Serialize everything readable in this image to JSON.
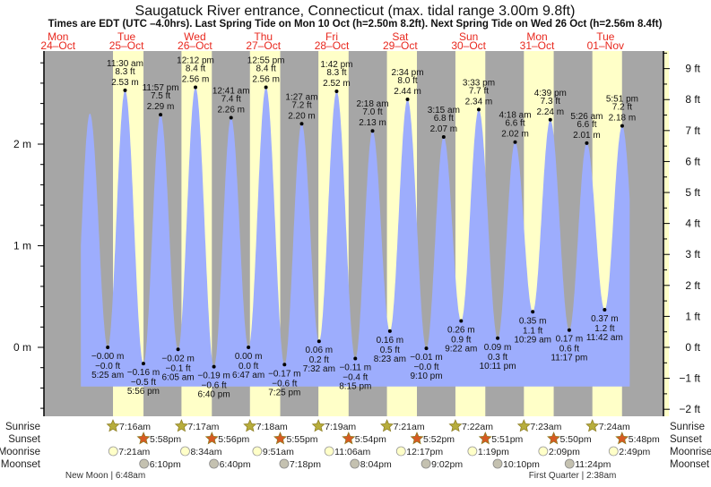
{
  "chart_data": {
    "type": "area",
    "title": "Saugatuck River entrance, Connecticut (max. tidal range 3.00m 9.8ft)",
    "subtitle": "Times are EDT (UTC –4.0hrs). Last Spring Tide on Mon 10 Oct (h=2.50m 8.2ft). Next Spring Tide on Wed 26 Oct (h=2.56m 8.4ft)",
    "ylim_m": [
      -0.68,
      2.9
    ],
    "left_ticks": [
      {
        "v": 2,
        "label": "2 m"
      },
      {
        "v": 1,
        "label": "1 m"
      },
      {
        "v": 0,
        "label": "0 m"
      }
    ],
    "right_ticks": [
      {
        "v": 9,
        "label": "9 ft"
      },
      {
        "v": 8,
        "label": "8 ft"
      },
      {
        "v": 7,
        "label": "7 ft"
      },
      {
        "v": 6,
        "label": "6 ft"
      },
      {
        "v": 5,
        "label": "5 ft"
      },
      {
        "v": 4,
        "label": "4 ft"
      },
      {
        "v": 3,
        "label": "3 ft"
      },
      {
        "v": 2,
        "label": "2 ft"
      },
      {
        "v": 1,
        "label": "1 ft"
      },
      {
        "v": 0,
        "label": "0 ft"
      },
      {
        "v": -1,
        "label": "−1 ft"
      },
      {
        "v": -2,
        "label": "−2 ft"
      }
    ],
    "days": [
      {
        "dow": "Mon",
        "date": "24–Oct"
      },
      {
        "dow": "Tue",
        "date": "25–Oct"
      },
      {
        "dow": "Wed",
        "date": "26–Oct"
      },
      {
        "dow": "Thu",
        "date": "27–Oct"
      },
      {
        "dow": "Fri",
        "date": "28–Oct"
      },
      {
        "dow": "Sat",
        "date": "29–Oct"
      },
      {
        "dow": "Sun",
        "date": "30–Oct"
      },
      {
        "dow": "Mon",
        "date": "31–Oct"
      },
      {
        "dow": "Tue",
        "date": "01–Nov"
      }
    ],
    "extremes": [
      {
        "day": 0,
        "time": "11:10 pm",
        "m": "2.30",
        "ft": "7.5",
        "type": "high",
        "labeled": false
      },
      {
        "day": 1,
        "time": "5:25 am",
        "m": "−0.00",
        "ft": "−0.0",
        "type": "low",
        "labeled": true
      },
      {
        "day": 1,
        "time": "11:30 am",
        "m": "2.53",
        "ft": "8.3",
        "type": "high",
        "labeled": true
      },
      {
        "day": 1,
        "time": "5:56 pm",
        "m": "−0.16",
        "ft": "−0.5",
        "type": "low",
        "labeled": true
      },
      {
        "day": 1,
        "time": "11:57 pm",
        "m": "2.29",
        "ft": "7.5",
        "type": "high",
        "labeled": true
      },
      {
        "day": 2,
        "time": "6:05 am",
        "m": "−0.02",
        "ft": "−0.1",
        "type": "low",
        "labeled": true
      },
      {
        "day": 2,
        "time": "12:12 pm",
        "m": "2.56",
        "ft": "8.4",
        "type": "high",
        "labeled": true
      },
      {
        "day": 2,
        "time": "6:40 pm",
        "m": "−0.19",
        "ft": "−0.6",
        "type": "low",
        "labeled": true
      },
      {
        "day": 3,
        "time": "12:41 am",
        "m": "2.26",
        "ft": "7.4",
        "type": "high",
        "labeled": true
      },
      {
        "day": 3,
        "time": "6:47 am",
        "m": "0.00",
        "ft": "0.0",
        "type": "low",
        "labeled": true
      },
      {
        "day": 3,
        "time": "12:55 pm",
        "m": "2.56",
        "ft": "8.4",
        "type": "high",
        "labeled": true
      },
      {
        "day": 3,
        "time": "7:25 pm",
        "m": "−0.17",
        "ft": "−0.6",
        "type": "low",
        "labeled": true
      },
      {
        "day": 4,
        "time": "1:27 am",
        "m": "2.20",
        "ft": "7.2",
        "type": "high",
        "labeled": true
      },
      {
        "day": 4,
        "time": "7:32 am",
        "m": "0.06",
        "ft": "0.2",
        "type": "low",
        "labeled": true
      },
      {
        "day": 4,
        "time": "1:42 pm",
        "m": "2.52",
        "ft": "8.3",
        "type": "high",
        "labeled": true
      },
      {
        "day": 4,
        "time": "8:15 pm",
        "m": "−0.11",
        "ft": "−0.4",
        "type": "low",
        "labeled": true
      },
      {
        "day": 5,
        "time": "2:18 am",
        "m": "2.13",
        "ft": "7.0",
        "type": "high",
        "labeled": true
      },
      {
        "day": 5,
        "time": "8:23 am",
        "m": "0.16",
        "ft": "0.5",
        "type": "low",
        "labeled": true
      },
      {
        "day": 5,
        "time": "2:34 pm",
        "m": "2.44",
        "ft": "8.0",
        "type": "high",
        "labeled": true
      },
      {
        "day": 5,
        "time": "9:10 pm",
        "m": "−0.01",
        "ft": "−0.0",
        "type": "low",
        "labeled": true
      },
      {
        "day": 6,
        "time": "3:15 am",
        "m": "2.07",
        "ft": "6.8",
        "type": "high",
        "labeled": true
      },
      {
        "day": 6,
        "time": "9:22 am",
        "m": "0.26",
        "ft": "0.9",
        "type": "low",
        "labeled": true
      },
      {
        "day": 6,
        "time": "3:33 pm",
        "m": "2.34",
        "ft": "7.7",
        "type": "high",
        "labeled": true
      },
      {
        "day": 6,
        "time": "10:11 pm",
        "m": "0.09",
        "ft": "0.3",
        "type": "low",
        "labeled": true
      },
      {
        "day": 7,
        "time": "4:18 am",
        "m": "2.02",
        "ft": "6.6",
        "type": "high",
        "labeled": true
      },
      {
        "day": 7,
        "time": "10:29 am",
        "m": "0.35",
        "ft": "1.1",
        "type": "low",
        "labeled": true
      },
      {
        "day": 7,
        "time": "4:39 pm",
        "m": "2.24",
        "ft": "7.3",
        "type": "high",
        "labeled": true
      },
      {
        "day": 7,
        "time": "11:17 pm",
        "m": "0.17",
        "ft": "0.6",
        "type": "low",
        "labeled": true
      },
      {
        "day": 8,
        "time": "5:26 am",
        "m": "2.01",
        "ft": "6.6",
        "type": "high",
        "labeled": true
      },
      {
        "day": 8,
        "time": "11:42 am",
        "m": "0.37",
        "ft": "1.2",
        "type": "low",
        "labeled": true
      },
      {
        "day": 8,
        "time": "5:51 pm",
        "m": "2.18",
        "ft": "7.2",
        "type": "high",
        "labeled": true
      }
    ],
    "row_labels": {
      "sunrise": "Sunrise",
      "sunset": "Sunset",
      "moonrise": "Moonrise",
      "moonset": "Moonset"
    },
    "sun": [
      {
        "day": 1,
        "rise": "7:16am",
        "set": "5:58pm"
      },
      {
        "day": 2,
        "rise": "7:17am",
        "set": "5:56pm"
      },
      {
        "day": 3,
        "rise": "7:18am",
        "set": "5:55pm"
      },
      {
        "day": 4,
        "rise": "7:19am",
        "set": "5:54pm"
      },
      {
        "day": 5,
        "rise": "7:21am",
        "set": "5:52pm"
      },
      {
        "day": 6,
        "rise": "7:22am",
        "set": "5:51pm"
      },
      {
        "day": 7,
        "rise": "7:23am",
        "set": "5:50pm"
      },
      {
        "day": 8,
        "rise": "7:24am",
        "set": "5:48pm"
      }
    ],
    "moonrise": [
      {
        "day": 1,
        "time": "7:21am"
      },
      {
        "day": 2,
        "time": "8:34am"
      },
      {
        "day": 3,
        "time": "9:51am"
      },
      {
        "day": 4,
        "time": "11:06am"
      },
      {
        "day": 5,
        "time": "12:17pm"
      },
      {
        "day": 6,
        "time": "1:19pm"
      },
      {
        "day": 7,
        "time": "2:09pm"
      },
      {
        "day": 8,
        "time": "2:49pm"
      }
    ],
    "moonset": [
      {
        "day": 1,
        "time": "6:10pm"
      },
      {
        "day": 2,
        "time": "6:40pm"
      },
      {
        "day": 3,
        "time": "7:18pm"
      },
      {
        "day": 4,
        "time": "8:04pm"
      },
      {
        "day": 5,
        "time": "9:02pm"
      },
      {
        "day": 6,
        "time": "10:10pm"
      },
      {
        "day": 7,
        "time": "11:24pm"
      }
    ],
    "phases": [
      {
        "day": 1,
        "time": "6:48am",
        "label": "New Moon | 6:48am"
      },
      {
        "day": 8,
        "time": "2:38am",
        "label": "First Quarter | 2:38am"
      }
    ]
  },
  "colors": {
    "night": "#a6a6a6",
    "day": "#ffffc8",
    "water": "#9dadfd",
    "sunrise": "#b7ad3c",
    "sunset": "#d65a22",
    "moonrise": "#ffffc8",
    "moonset": "#c4c1b0",
    "dayLabel": "#e8281e"
  }
}
